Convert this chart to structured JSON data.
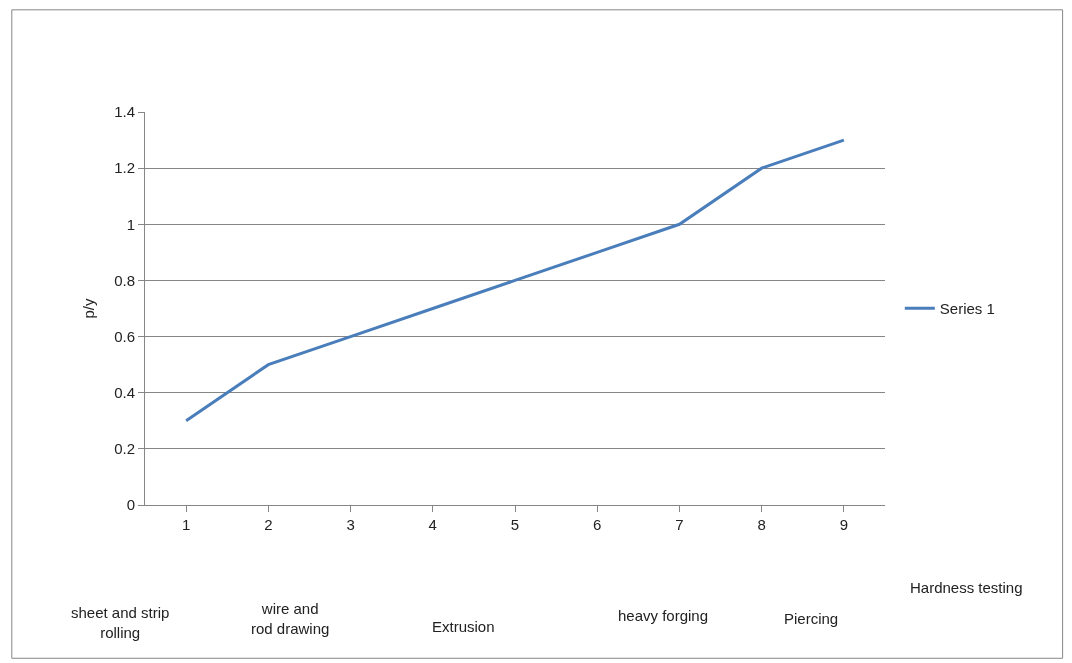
{
  "chart_data": {
    "type": "line",
    "ylabel": "p/y",
    "categories": [
      "1",
      "2",
      "3",
      "4",
      "5",
      "6",
      "7",
      "8",
      "9"
    ],
    "series": [
      {
        "name": "Series 1",
        "color": "#4a7ebb",
        "values": [
          0.3,
          0.5,
          0.6,
          0.7,
          0.8,
          0.9,
          1.0,
          1.2,
          1.3
        ]
      }
    ],
    "ylim": [
      0,
      1.4
    ],
    "yticks": [
      0,
      0.2,
      0.4,
      0.6,
      0.8,
      1,
      1.2,
      1.4
    ],
    "grid": "y",
    "legend": "right",
    "marker": "none",
    "line_style": "solid",
    "annotations": [
      "sheet and strip rolling",
      "wire and rod drawing",
      "Extrusion",
      "heavy forging",
      "Piercing",
      "Hardness testing"
    ]
  }
}
